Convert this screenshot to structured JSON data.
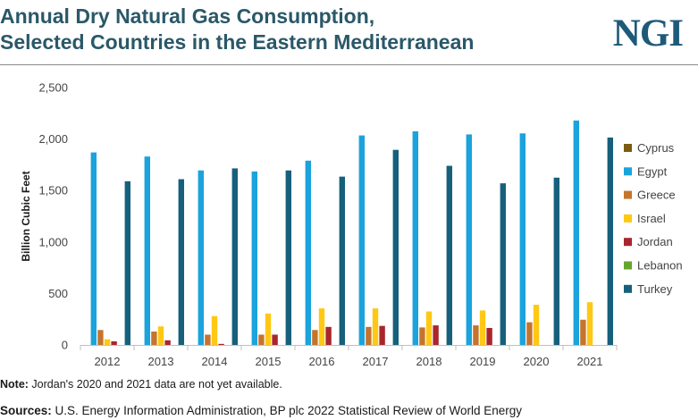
{
  "title": {
    "line1": "Annual Dry Natural Gas Consumption,",
    "line2": "Selected Countries in the Eastern Mediterranean"
  },
  "logo": "NGI",
  "note": {
    "label": "Note:",
    "text": " Jordan's 2020 and 2021 data are not yet available."
  },
  "sources": {
    "label": "Sources:",
    "text": " U.S. Energy Information Administration, BP plc 2022 Statistical Review of World Energy"
  },
  "colors": {
    "title": "#2a5868",
    "logo": "#1d5a7a",
    "Cyprus": "#7a5c12",
    "Egypt": "#1aa3dc",
    "Greece": "#c5742e",
    "Israel": "#ffc814",
    "Jordan": "#a8262d",
    "Lebanon": "#67a52f",
    "Turkey": "#16607c"
  },
  "chart_data": {
    "type": "bar",
    "title": "Annual Dry Natural Gas Consumption, Selected Countries in the Eastern Mediterranean",
    "xlabel": "",
    "ylabel": "Billion Cubic Feet",
    "ylim": [
      0,
      2500
    ],
    "yticks": [
      0,
      500,
      1000,
      1500,
      2000,
      2500
    ],
    "ytick_labels": [
      "0",
      "500",
      "1,000",
      "1,500",
      "2,000",
      "2,500"
    ],
    "grid": false,
    "legend_position": "right",
    "categories": [
      "2012",
      "2013",
      "2014",
      "2015",
      "2016",
      "2017",
      "2018",
      "2019",
      "2020",
      "2021"
    ],
    "series": [
      {
        "name": "Cyprus",
        "values": [
          0,
          0,
          0,
          0,
          0,
          0,
          0,
          0,
          0,
          0
        ]
      },
      {
        "name": "Egypt",
        "values": [
          1870,
          1830,
          1695,
          1685,
          1790,
          2035,
          2075,
          2045,
          2055,
          2180
        ]
      },
      {
        "name": "Greece",
        "values": [
          145,
          130,
          100,
          100,
          145,
          175,
          170,
          190,
          220,
          245
        ]
      },
      {
        "name": "Israel",
        "values": [
          55,
          180,
          280,
          305,
          355,
          355,
          325,
          335,
          390,
          415
        ]
      },
      {
        "name": "Jordan",
        "values": [
          35,
          45,
          10,
          100,
          175,
          185,
          190,
          165,
          null,
          null
        ]
      },
      {
        "name": "Lebanon",
        "values": [
          0,
          0,
          0,
          0,
          0,
          0,
          0,
          0,
          0,
          0
        ]
      },
      {
        "name": "Turkey",
        "values": [
          1590,
          1610,
          1715,
          1695,
          1635,
          1895,
          1740,
          1570,
          1625,
          2015
        ]
      }
    ]
  }
}
